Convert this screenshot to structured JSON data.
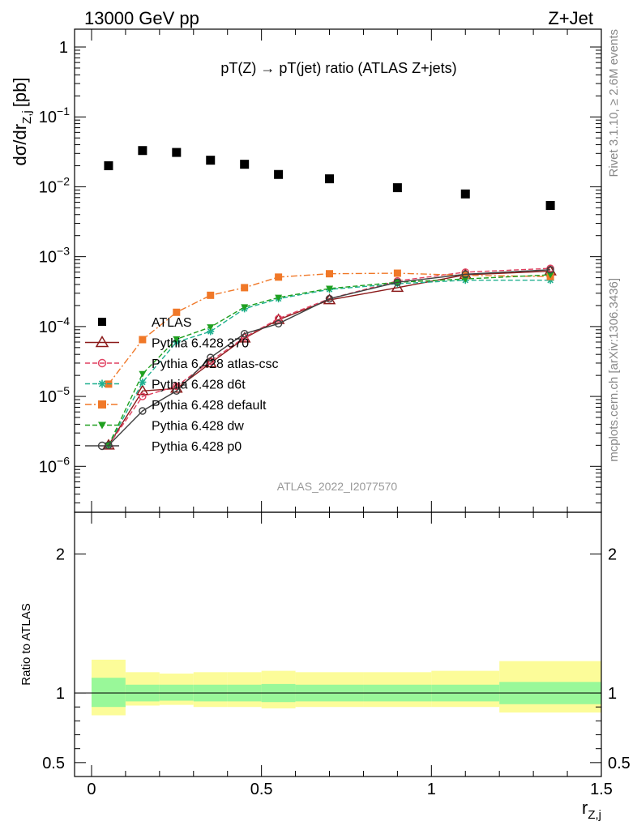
{
  "header": {
    "left": "13000 GeV pp",
    "right": "Z+Jet"
  },
  "side_labels": {
    "rivet": "Rivet 3.1.10, ≥ 2.6M events",
    "mcplots": "mcplots.cern.ch [arXiv:1306.3436]"
  },
  "chart_data": [
    {
      "type": "scatter",
      "title": "pT(Z) → pT(jet) ratio (ATLAS Z+jets)",
      "analysis": "ATLAS_2022_I2077570",
      "ylabel": "dσ/dr",
      "ylabel_sub": "Z,j",
      "ylabel_unit": "[pb]",
      "xlabel": "r",
      "xlabel_sub": "Z,j",
      "xlim": [
        -0.05,
        1.5
      ],
      "ylim": [
        2.2e-07,
        1.8
      ],
      "yscale": "log",
      "y_ticks": [
        {
          "value": 1,
          "label": "1"
        },
        {
          "value": 0.1,
          "label": "10",
          "exp": "−1"
        },
        {
          "value": 0.01,
          "label": "10",
          "exp": "−2"
        },
        {
          "value": 0.001,
          "label": "10",
          "exp": "−3"
        },
        {
          "value": 0.0001,
          "label": "10",
          "exp": "−4"
        },
        {
          "value": 1e-05,
          "label": "10",
          "exp": "−5"
        },
        {
          "value": 1e-06,
          "label": "10",
          "exp": "−6"
        }
      ],
      "legend_placement": "left-middle",
      "series": [
        {
          "name": "ATLAS",
          "color": "#000000",
          "marker": "square-filled",
          "line": "none",
          "x": [
            0.05,
            0.15,
            0.25,
            0.35,
            0.45,
            0.55,
            0.7,
            0.9,
            1.1,
            1.35
          ],
          "y": [
            0.02,
            0.033,
            0.031,
            0.024,
            0.021,
            0.015,
            0.013,
            0.0097,
            0.0079,
            0.0054
          ]
        },
        {
          "name": "Pythia 6.428 370",
          "color": "#8b1a1a",
          "marker": "triangle-open",
          "line": "solid",
          "x": [
            0.05,
            0.15,
            0.25,
            0.35,
            0.45,
            0.55,
            0.7,
            0.9,
            1.1,
            1.35
          ],
          "y": [
            2e-06,
            1.2e-05,
            1.3e-05,
            3e-05,
            6.8e-05,
            0.000125,
            0.00024,
            0.00036,
            0.00055,
            0.00062
          ]
        },
        {
          "name": "Pythia 6.428 atlas-csc",
          "color": "#e04060",
          "marker": "circle-open",
          "line": "dashed",
          "x": [
            0.05,
            0.15,
            0.25,
            0.35,
            0.45,
            0.55,
            0.7,
            0.9,
            1.1,
            1.35
          ],
          "y": [
            2e-06,
            1e-05,
            1.4e-05,
            3.2e-05,
            7e-05,
            0.00013,
            0.00025,
            0.00045,
            0.0006,
            0.00068
          ]
        },
        {
          "name": "Pythia 6.428 d6t",
          "color": "#20b090",
          "marker": "star",
          "line": "dashed",
          "x": [
            0.05,
            0.15,
            0.25,
            0.35,
            0.45,
            0.55,
            0.7,
            0.9,
            1.1,
            1.35
          ],
          "y": [
            2e-06,
            1.6e-05,
            6e-05,
            8.5e-05,
            0.00018,
            0.00025,
            0.00034,
            0.00041,
            0.00046,
            0.00046
          ]
        },
        {
          "name": "Pythia 6.428 default",
          "color": "#f07828",
          "marker": "square-filled",
          "line": "dashdot",
          "x": [
            0.05,
            0.15,
            0.25,
            0.35,
            0.45,
            0.55,
            0.7,
            0.9,
            1.1,
            1.35
          ],
          "y": [
            1.5e-05,
            6.5e-05,
            0.00016,
            0.00028,
            0.00036,
            0.00051,
            0.00057,
            0.00058,
            0.00054,
            0.00052
          ]
        },
        {
          "name": "Pythia 6.428 dw",
          "color": "#20a020",
          "marker": "triangle-down-filled",
          "line": "dashed",
          "x": [
            0.05,
            0.15,
            0.25,
            0.35,
            0.45,
            0.55,
            0.7,
            0.9,
            1.1,
            1.35
          ],
          "y": [
            2e-06,
            2.1e-05,
            6.6e-05,
            9.8e-05,
            0.00019,
            0.00026,
            0.00035,
            0.00043,
            0.00048,
            0.00055
          ]
        },
        {
          "name": "Pythia 6.428 p0",
          "color": "#404040",
          "marker": "circle-open",
          "line": "solid",
          "x": [
            0.05,
            0.15,
            0.25,
            0.35,
            0.45,
            0.55,
            0.7,
            0.9,
            1.1,
            1.35
          ],
          "y": [
            2e-06,
            6.2e-06,
            1.2e-05,
            3.6e-05,
            7.9e-05,
            0.00011,
            0.00025,
            0.00043,
            0.00056,
            0.00065
          ]
        }
      ]
    },
    {
      "type": "area",
      "ylabel": "Ratio to ATLAS",
      "xlim": [
        -0.05,
        1.5
      ],
      "ylim": [
        0.4,
        2.3
      ],
      "y_ticks": [
        0.5,
        1,
        2
      ],
      "x_ticks": [
        0,
        0.5,
        1,
        1.5
      ],
      "x_tick_labels": [
        "0",
        "0.5",
        "1",
        "1.5"
      ],
      "inner_band_color": "#99f899",
      "outer_band_color": "#fcfc99",
      "bins": [
        {
          "xlo": 0.0,
          "xhi": 0.1,
          "inner": [
            0.9,
            1.11
          ],
          "outer": [
            0.84,
            1.24
          ]
        },
        {
          "xlo": 0.1,
          "xhi": 0.2,
          "inner": [
            0.94,
            1.06
          ],
          "outer": [
            0.91,
            1.15
          ]
        },
        {
          "xlo": 0.2,
          "xhi": 0.3,
          "inner": [
            0.945,
            1.06
          ],
          "outer": [
            0.915,
            1.14
          ]
        },
        {
          "xlo": 0.3,
          "xhi": 0.4,
          "inner": [
            0.94,
            1.06
          ],
          "outer": [
            0.9,
            1.15
          ]
        },
        {
          "xlo": 0.4,
          "xhi": 0.5,
          "inner": [
            0.94,
            1.06
          ],
          "outer": [
            0.9,
            1.15
          ]
        },
        {
          "xlo": 0.5,
          "xhi": 0.6,
          "inner": [
            0.935,
            1.065
          ],
          "outer": [
            0.89,
            1.16
          ]
        },
        {
          "xlo": 0.6,
          "xhi": 0.8,
          "inner": [
            0.94,
            1.06
          ],
          "outer": [
            0.9,
            1.15
          ]
        },
        {
          "xlo": 0.8,
          "xhi": 1.0,
          "inner": [
            0.94,
            1.06
          ],
          "outer": [
            0.9,
            1.15
          ]
        },
        {
          "xlo": 1.0,
          "xhi": 1.2,
          "inner": [
            0.94,
            1.06
          ],
          "outer": [
            0.9,
            1.16
          ]
        },
        {
          "xlo": 1.2,
          "xhi": 1.5,
          "inner": [
            0.92,
            1.08
          ],
          "outer": [
            0.86,
            1.23
          ]
        }
      ]
    }
  ]
}
